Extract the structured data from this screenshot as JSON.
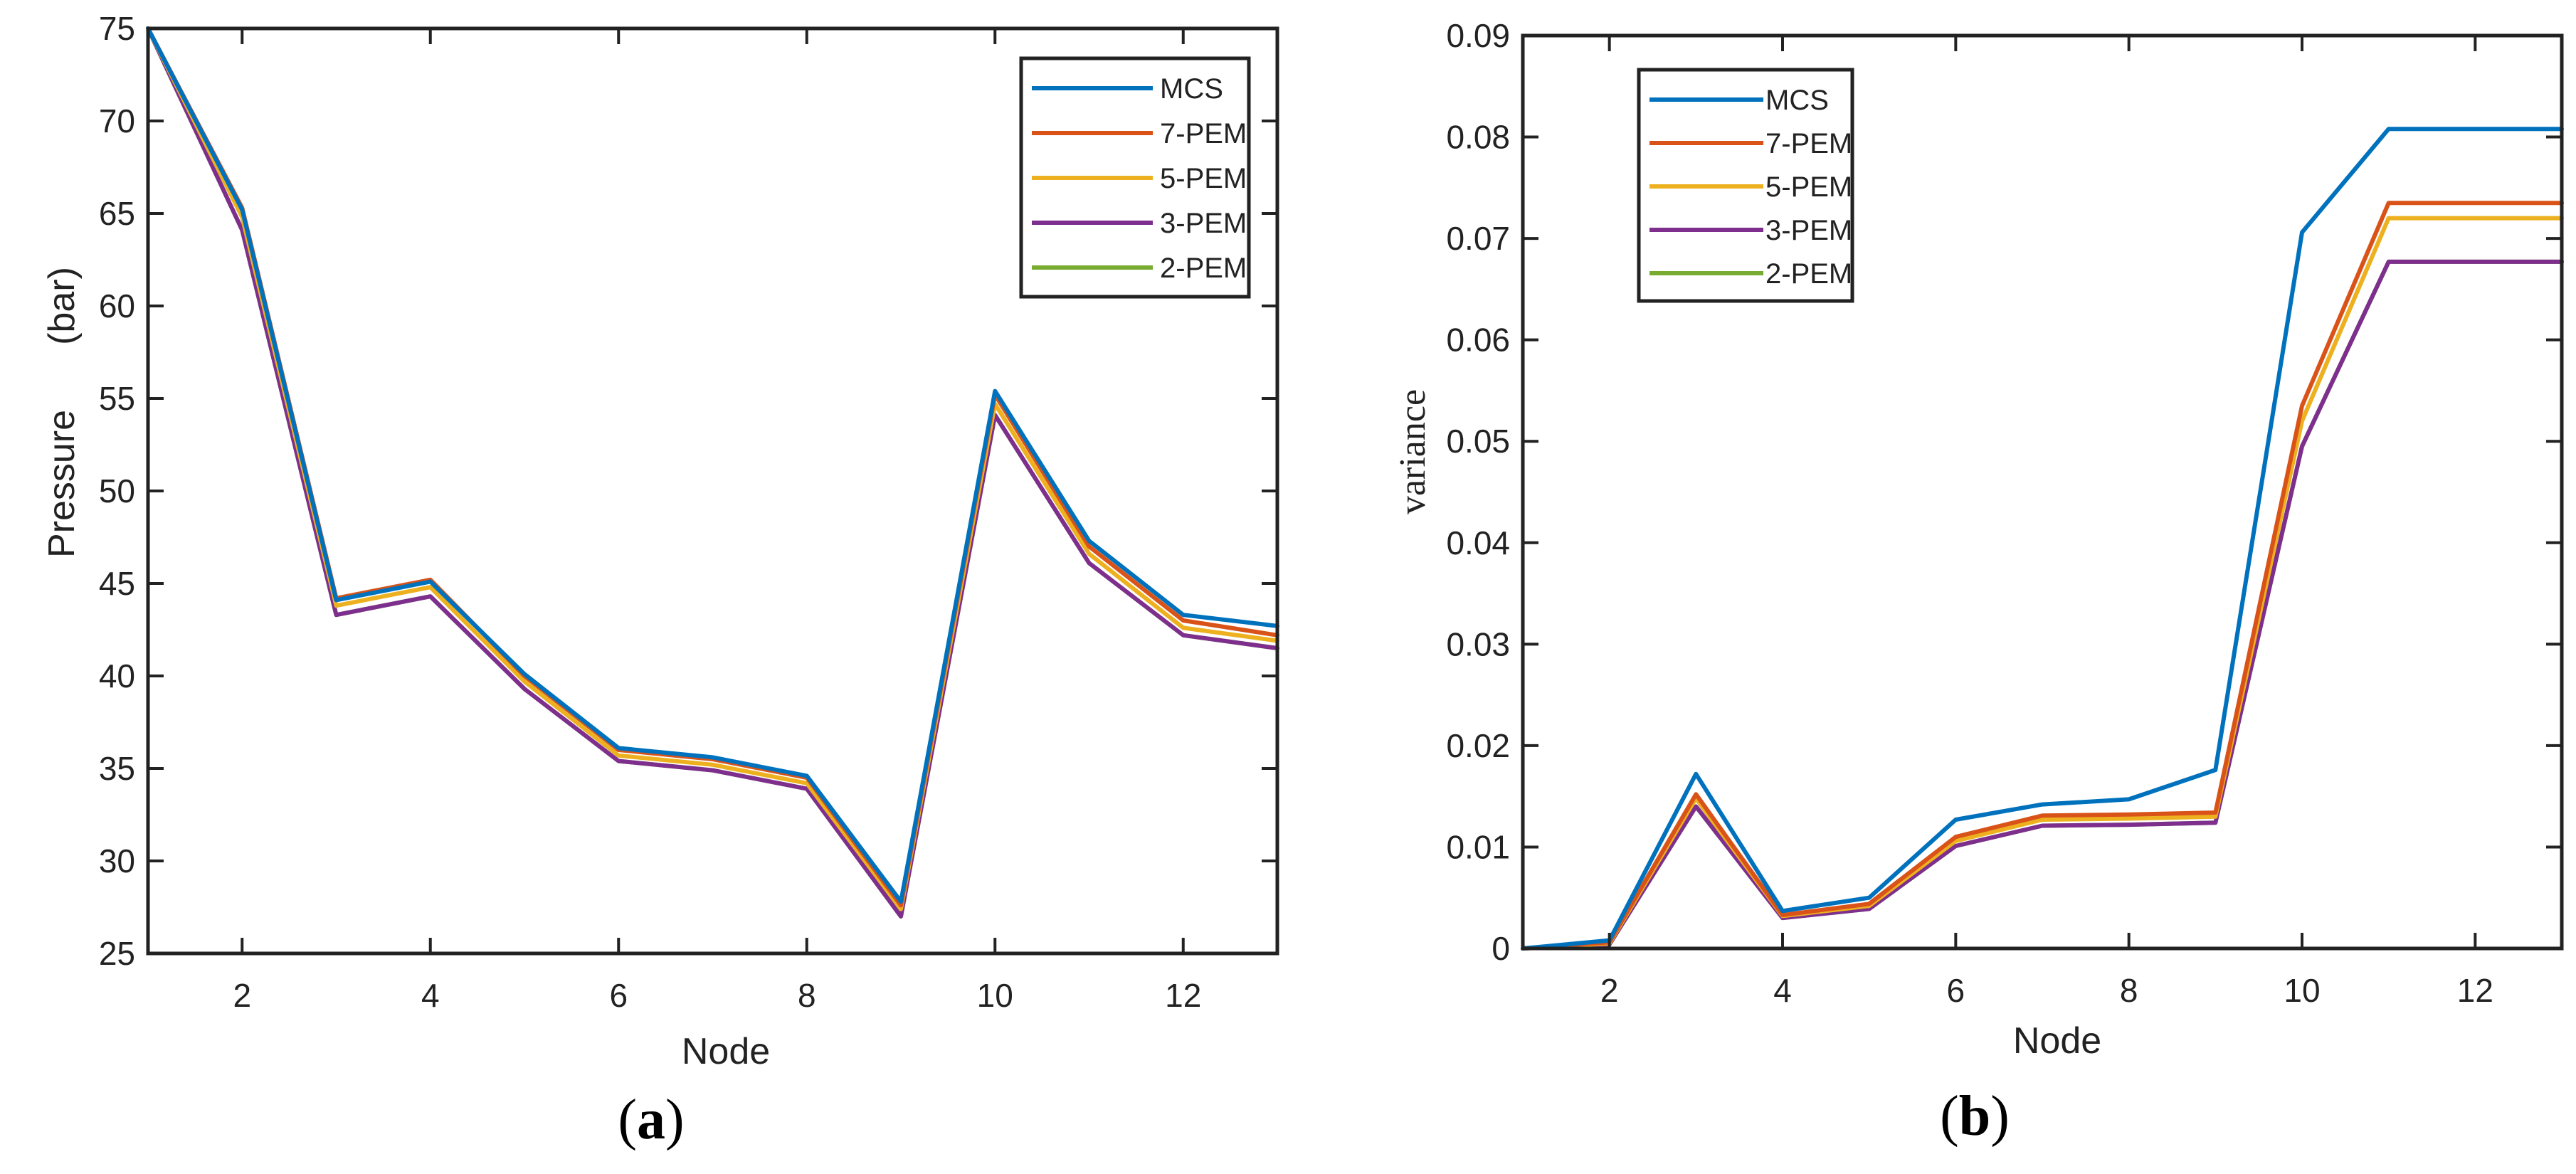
{
  "chart_data": [
    {
      "type": "line",
      "panel_label": "a",
      "xlabel": "Node",
      "ylabel": "Pressure (bar)",
      "ylabel_left": "Pressure",
      "ylabel_right": "(bar)",
      "xlim": [
        1,
        13
      ],
      "ylim": [
        25,
        75
      ],
      "xticks": [
        2,
        4,
        6,
        8,
        10,
        12
      ],
      "yticks": [
        25,
        30,
        35,
        40,
        45,
        50,
        55,
        60,
        65,
        70,
        75
      ],
      "legend_position": "top-right",
      "x": [
        1,
        2,
        3,
        4,
        5,
        6,
        7,
        8,
        9,
        10,
        11,
        12,
        13
      ],
      "series": [
        {
          "name": "MCS",
          "color": "#0072BD",
          "values": [
            75,
            65.2,
            44.1,
            45.1,
            40.1,
            36.1,
            35.6,
            34.6,
            27.8,
            55.4,
            47.3,
            43.3,
            42.7
          ]
        },
        {
          "name": "7-PEM",
          "color": "#D95319",
          "values": [
            75,
            65.3,
            44.2,
            45.2,
            40.0,
            36.0,
            35.5,
            34.5,
            27.6,
            55.2,
            47.0,
            43.0,
            42.2
          ]
        },
        {
          "name": "5-PEM",
          "color": "#EDB120",
          "values": [
            75,
            64.8,
            43.8,
            44.8,
            39.7,
            35.7,
            35.2,
            34.2,
            27.4,
            54.7,
            46.6,
            42.6,
            41.9
          ]
        },
        {
          "name": "3-PEM",
          "color": "#7E2F8E",
          "values": [
            75,
            64.1,
            43.3,
            44.3,
            39.3,
            35.4,
            34.9,
            33.9,
            27.0,
            54.1,
            46.1,
            42.2,
            41.5
          ]
        },
        {
          "name": "2-PEM",
          "color": "#77AC30",
          "values": [
            75,
            64.1,
            43.3,
            44.3,
            39.3,
            35.4,
            34.9,
            33.9,
            27.0,
            54.1,
            46.1,
            42.2,
            41.5
          ]
        }
      ]
    },
    {
      "type": "line",
      "panel_label": "b",
      "xlabel": "Node",
      "ylabel": "variance",
      "xlim": [
        1,
        13
      ],
      "ylim": [
        0,
        0.09
      ],
      "xticks": [
        2,
        4,
        6,
        8,
        10,
        12
      ],
      "yticks": [
        0,
        0.01,
        0.02,
        0.03,
        0.04,
        0.05,
        0.06,
        0.07,
        0.08,
        0.09
      ],
      "ytick_labels": [
        "0",
        "0.01",
        "0.02",
        "0.03",
        "0.04",
        "0.05",
        "0.06",
        "0.07",
        "0.08",
        "0.09"
      ],
      "legend_position": "top-left",
      "x": [
        1,
        2,
        3,
        4,
        5,
        6,
        7,
        8,
        9,
        10,
        11,
        12,
        13
      ],
      "series": [
        {
          "name": "MCS",
          "color": "#0072BD",
          "values": [
            0,
            0.0008,
            0.0172,
            0.0037,
            0.005,
            0.0127,
            0.0142,
            0.0147,
            0.0176,
            0.0706,
            0.0808,
            0.0808,
            0.0808
          ]
        },
        {
          "name": "7-PEM",
          "color": "#D95319",
          "values": [
            0,
            0.0006,
            0.0152,
            0.0033,
            0.0044,
            0.011,
            0.0131,
            0.0132,
            0.0134,
            0.0535,
            0.0735,
            0.0735,
            0.0735
          ]
        },
        {
          "name": "5-PEM",
          "color": "#EDB120",
          "values": [
            0,
            0.0005,
            0.0148,
            0.0032,
            0.0042,
            0.0106,
            0.0127,
            0.0128,
            0.013,
            0.052,
            0.072,
            0.072,
            0.072
          ]
        },
        {
          "name": "3-PEM",
          "color": "#7E2F8E",
          "values": [
            0,
            0.0004,
            0.014,
            0.003,
            0.0039,
            0.0101,
            0.0121,
            0.0122,
            0.0124,
            0.0495,
            0.0677,
            0.0677,
            0.0677
          ]
        },
        {
          "name": "2-PEM",
          "color": "#77AC30",
          "values": [
            0,
            0.0004,
            0.014,
            0.003,
            0.0039,
            0.0101,
            0.0121,
            0.0122,
            0.0124,
            0.0495,
            0.0677,
            0.0677,
            0.0677
          ]
        }
      ]
    }
  ]
}
